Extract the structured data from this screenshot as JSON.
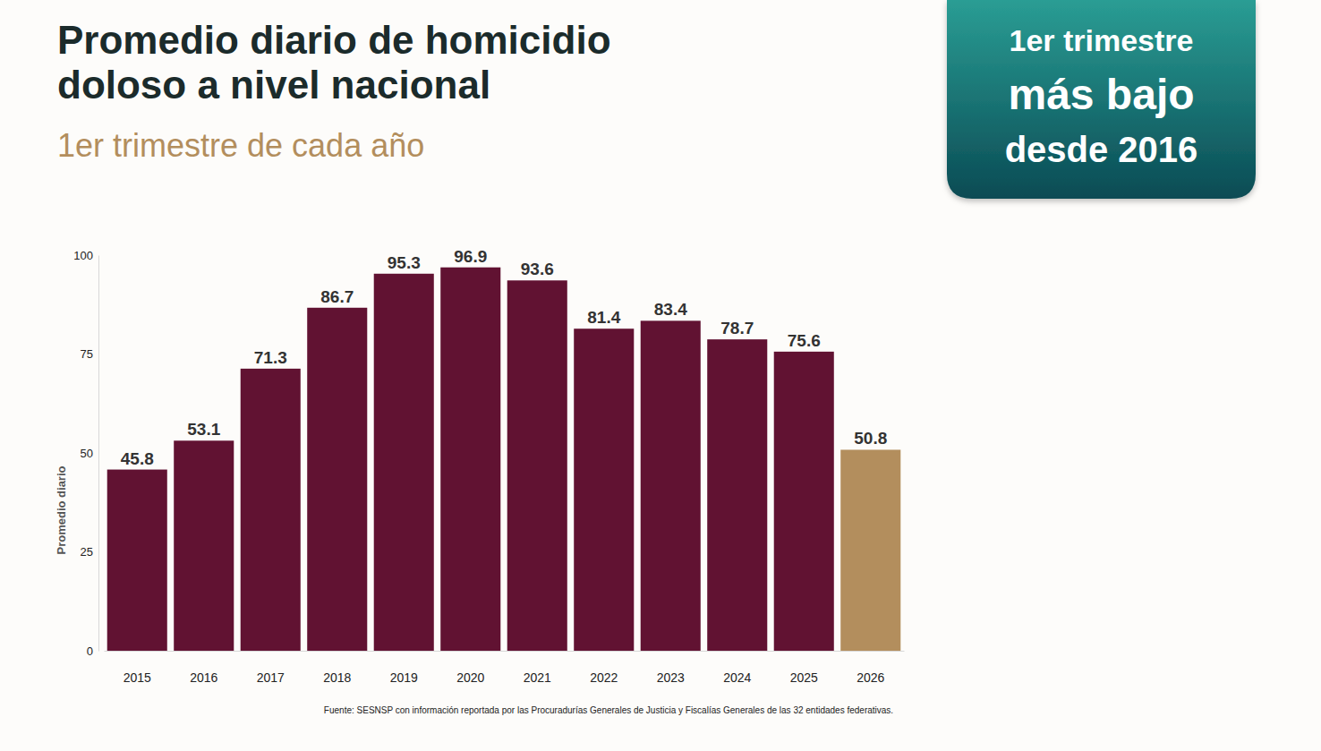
{
  "chart_data": {
    "type": "bar",
    "title": "Promedio diario de homicidio doloso a nivel nacional",
    "subtitle": "1er trimestre de cada año",
    "annotation": [
      "1er trimestre",
      "más bajo",
      "desde 2016"
    ],
    "y_label": "Promedio diario",
    "source": "Fuente: SESNSP con información reportada por las Procuradurías Generales de Justicia y Fiscalías Generales de las 32 entidades federativas.",
    "categories": [
      "2015",
      "2016",
      "2017",
      "2018",
      "2019",
      "2020",
      "2021",
      "2022",
      "2023",
      "2024",
      "2025",
      "2026"
    ],
    "values": [
      45.8,
      53.1,
      71.3,
      86.7,
      95.3,
      96.9,
      93.6,
      81.4,
      83.4,
      78.7,
      75.6,
      50.8
    ],
    "colors": [
      "#611232",
      "#611232",
      "#611232",
      "#611232",
      "#611232",
      "#611232",
      "#611232",
      "#611232",
      "#611232",
      "#611232",
      "#611232",
      "#b38e5d"
    ],
    "ylim": [
      0,
      100
    ],
    "yticks": [
      0,
      25,
      50,
      75,
      100
    ],
    "grid": false,
    "data_labels": true
  }
}
